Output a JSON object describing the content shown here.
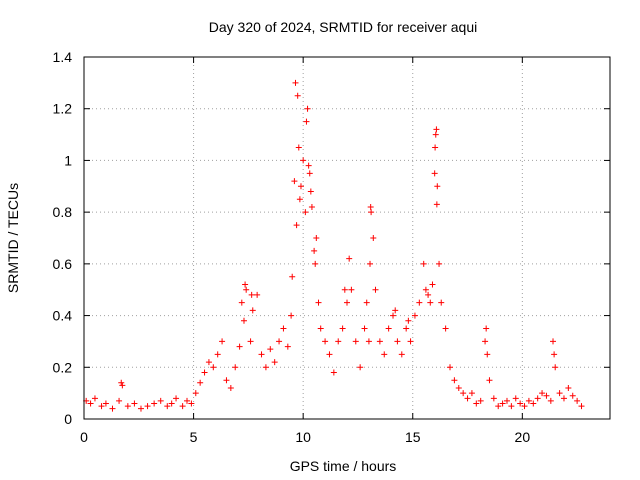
{
  "chart_data": {
    "type": "scatter",
    "title": "Day 320 of 2024, SRMTID for receiver aqui",
    "xlabel": "GPS time / hours",
    "ylabel": "SRMTID / TECUs",
    "xlim": [
      0,
      24
    ],
    "ylim": [
      0,
      1.4
    ],
    "xticks": [
      0,
      5,
      10,
      15,
      20
    ],
    "yticks": [
      0,
      0.2,
      0.4,
      0.6,
      0.8,
      1,
      1.2,
      1.4
    ],
    "xtick_labels": [
      "0",
      "5",
      "10",
      "15",
      "20"
    ],
    "ytick_labels": [
      "0",
      "0.2",
      "0.4",
      "0.6",
      "0.8",
      "1",
      "1.2",
      "1.4"
    ],
    "grid": true,
    "marker": "plus",
    "series": [
      {
        "name": "SRMTID",
        "color": "#ff0000",
        "x": [
          0.1,
          0.3,
          0.5,
          0.8,
          1.0,
          1.3,
          1.6,
          1.7,
          1.75,
          2.0,
          2.3,
          2.6,
          2.9,
          3.2,
          3.5,
          3.8,
          4.0,
          4.2,
          4.5,
          4.7,
          4.9,
          5.1,
          5.3,
          5.5,
          5.7,
          5.9,
          6.1,
          6.3,
          6.5,
          6.7,
          6.9,
          7.1,
          7.2,
          7.3,
          7.4,
          7.6,
          7.7,
          7.9,
          8.1,
          8.3,
          8.5,
          8.7,
          8.9,
          9.1,
          9.3,
          9.5,
          9.6,
          9.7,
          9.8,
          9.9,
          10.0,
          10.1,
          10.2,
          10.3,
          10.4,
          10.5,
          10.6,
          10.7,
          10.8,
          11.0,
          11.2,
          11.4,
          11.6,
          11.8,
          12.0,
          12.1,
          12.2,
          12.4,
          12.6,
          12.8,
          13.0,
          13.05,
          13.1,
          13.2,
          13.3,
          13.5,
          13.7,
          13.9,
          14.1,
          14.3,
          14.5,
          14.7,
          14.9,
          15.1,
          15.3,
          15.5,
          15.6,
          15.8,
          16.0,
          16.05,
          16.1,
          16.2,
          16.3,
          16.5,
          16.7,
          16.9,
          17.1,
          17.3,
          17.5,
          17.7,
          17.9,
          18.1,
          18.3,
          18.35,
          18.4,
          18.5,
          18.7,
          18.9,
          19.1,
          19.3,
          19.5,
          19.7,
          19.9,
          20.1,
          20.3,
          20.5,
          20.7,
          20.9,
          21.1,
          21.3,
          21.4,
          21.45,
          21.5,
          21.7,
          21.9,
          22.1,
          22.3,
          22.5,
          22.7,
          9.65,
          9.75,
          9.85,
          10.15,
          10.25,
          10.35,
          16.02,
          16.08,
          16.12,
          13.08,
          12.9,
          11.9,
          7.35,
          7.65,
          15.9,
          15.7,
          9.45,
          10.55,
          14.2,
          14.8
        ],
        "y": [
          0.07,
          0.06,
          0.08,
          0.05,
          0.06,
          0.04,
          0.07,
          0.14,
          0.13,
          0.05,
          0.06,
          0.04,
          0.05,
          0.06,
          0.07,
          0.05,
          0.06,
          0.08,
          0.05,
          0.07,
          0.06,
          0.1,
          0.14,
          0.18,
          0.22,
          0.2,
          0.25,
          0.3,
          0.15,
          0.12,
          0.2,
          0.28,
          0.45,
          0.38,
          0.5,
          0.3,
          0.42,
          0.48,
          0.25,
          0.2,
          0.27,
          0.22,
          0.3,
          0.35,
          0.28,
          0.55,
          0.92,
          0.75,
          1.05,
          0.9,
          1.0,
          0.8,
          1.2,
          0.95,
          0.82,
          0.65,
          0.7,
          0.45,
          0.35,
          0.3,
          0.25,
          0.18,
          0.3,
          0.35,
          0.45,
          0.62,
          0.5,
          0.3,
          0.2,
          0.35,
          0.3,
          0.6,
          0.8,
          0.7,
          0.5,
          0.3,
          0.25,
          0.35,
          0.4,
          0.3,
          0.25,
          0.35,
          0.3,
          0.4,
          0.45,
          0.6,
          0.5,
          0.45,
          0.95,
          1.1,
          0.83,
          0.6,
          0.45,
          0.35,
          0.2,
          0.15,
          0.12,
          0.1,
          0.08,
          0.1,
          0.06,
          0.07,
          0.3,
          0.35,
          0.25,
          0.15,
          0.08,
          0.05,
          0.06,
          0.07,
          0.05,
          0.08,
          0.06,
          0.05,
          0.07,
          0.06,
          0.08,
          0.1,
          0.09,
          0.07,
          0.3,
          0.25,
          0.2,
          0.1,
          0.08,
          0.12,
          0.09,
          0.07,
          0.05,
          1.3,
          1.25,
          0.85,
          1.15,
          0.98,
          0.88,
          1.05,
          1.12,
          0.9,
          0.82,
          0.45,
          0.5,
          0.52,
          0.48,
          0.52,
          0.48,
          0.4,
          0.6,
          0.42,
          0.38
        ]
      }
    ]
  }
}
